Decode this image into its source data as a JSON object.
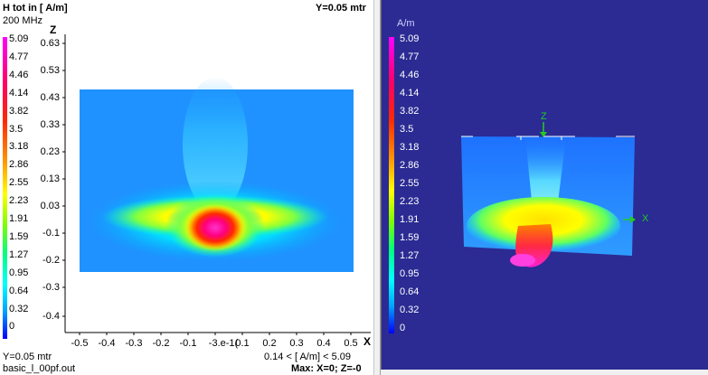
{
  "left": {
    "title": "H tot in [ A/m]",
    "frequency": "200 MHz",
    "plane": "Y=0.05 mtr",
    "legend_values": [
      "5.09",
      "4.77",
      "4.46",
      "4.14",
      "3.82",
      "3.5",
      "3.18",
      "2.86",
      "2.55",
      "2.23",
      "1.91",
      "1.59",
      "1.27",
      "0.95",
      "0.64",
      "0.32",
      "0"
    ],
    "z_axis_label": "Z",
    "z_ticks": [
      "0.63",
      "0.53",
      "0.43",
      "0.33",
      "0.23",
      "0.13",
      "0.03",
      "-0.1",
      "-0.2",
      "-0.3",
      "-0.4"
    ],
    "x_axis_label": "X",
    "x_ticks": [
      "-0.5",
      "-0.4",
      "-0.3",
      "-0.2",
      "-0.1",
      "-3.e-1(",
      "0.1",
      "0.2",
      "0.3",
      "0.4",
      "0.5"
    ],
    "footer_plane": "Y=0.05 mtr",
    "footer_file": "basic_l_00pf.out",
    "footer_range": "0.14 < [ A/m] < 5.09",
    "footer_max": "Max: X=0; Z=-0"
  },
  "right": {
    "unit": "A/m",
    "legend_values": [
      "5.09",
      "4.77",
      "4.46",
      "4.14",
      "3.82",
      "3.5",
      "3.18",
      "2.86",
      "2.55",
      "2.23",
      "1.91",
      "1.59",
      "1.27",
      "0.95",
      "0.64",
      "0.32",
      "0"
    ],
    "axis_z_label": "Z",
    "axis_x_label": "X",
    "axis_color": "#22cc22",
    "background_color": "#2b2b93"
  }
}
